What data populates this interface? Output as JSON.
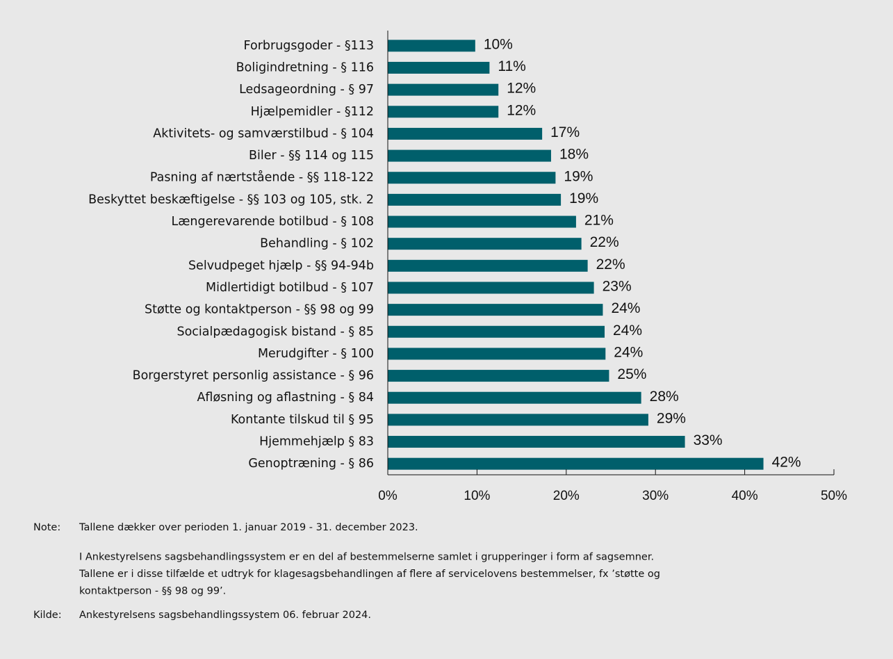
{
  "chart_data": {
    "type": "bar",
    "orientation": "horizontal",
    "categories": [
      "Forbrugsgoder - §113",
      "Boligindretning - § 116",
      "Ledsageordning - § 97",
      "Hjælpemidler - §112",
      "Aktivitets- og samværstilbud - § 104",
      "Biler - §§ 114 og 115",
      "Pasning af nærtstående - §§ 118-122",
      "Beskyttet beskæftigelse - §§ 103 og 105, stk. 2",
      "Længerevarende botilbud - § 108",
      "Behandling - § 102",
      "Selvudpeget hjælp - §§ 94-94b",
      "Midlertidigt botilbud - § 107",
      "Støtte og kontaktperson - §§ 98 og 99",
      "Socialpædagogisk bistand - § 85",
      "Merudgifter - § 100",
      "Borgerstyret personlig assistance - § 96",
      "Afløsning og aflastning - § 84",
      "Kontante tilskud til § 95",
      "Hjemmehjælp § 83",
      "Genoptræning - § 86"
    ],
    "values": [
      9.8,
      11.4,
      12.4,
      12.4,
      17.3,
      18.3,
      18.8,
      19.4,
      21.1,
      21.7,
      22.4,
      23.1,
      24.1,
      24.3,
      24.4,
      24.8,
      28.4,
      29.2,
      33.3,
      42.1
    ],
    "value_labels": [
      "10%",
      "11%",
      "12%",
      "12%",
      "17%",
      "18%",
      "19%",
      "19%",
      "21%",
      "22%",
      "22%",
      "23%",
      "24%",
      "24%",
      "24%",
      "25%",
      "28%",
      "29%",
      "33%",
      "42%"
    ],
    "color": "#005f6b",
    "xlim": [
      0,
      50
    ],
    "xticks": [
      {
        "value": 0,
        "label": "0%"
      },
      {
        "value": 10,
        "label": "10%"
      },
      {
        "value": 20,
        "label": "20%"
      },
      {
        "value": 30,
        "label": "30%"
      },
      {
        "value": 40,
        "label": "40%"
      },
      {
        "value": 50,
        "label": "50%"
      }
    ],
    "grid": false
  },
  "notes": [
    {
      "label": "Note:",
      "paragraphs": [
        [
          "Tallene dækker over perioden 1. januar 2019 - 31. december 2023."
        ],
        [
          "I Ankestyrelsens sagsbehandlingssystem er en del af bestemmelserne samlet i grupperinger i form af sagsemner.",
          "Tallene er i disse tilfælde et udtryk for klagesagsbehandlingen af flere af servicelovens bestemmelser, fx ’støtte og",
          "kontaktperson - §§ 98 og 99’."
        ]
      ]
    },
    {
      "label": "Kilde:",
      "paragraphs": [
        [
          "Ankestyrelsens sagsbehandlingssystem 06. februar 2024."
        ]
      ]
    }
  ]
}
